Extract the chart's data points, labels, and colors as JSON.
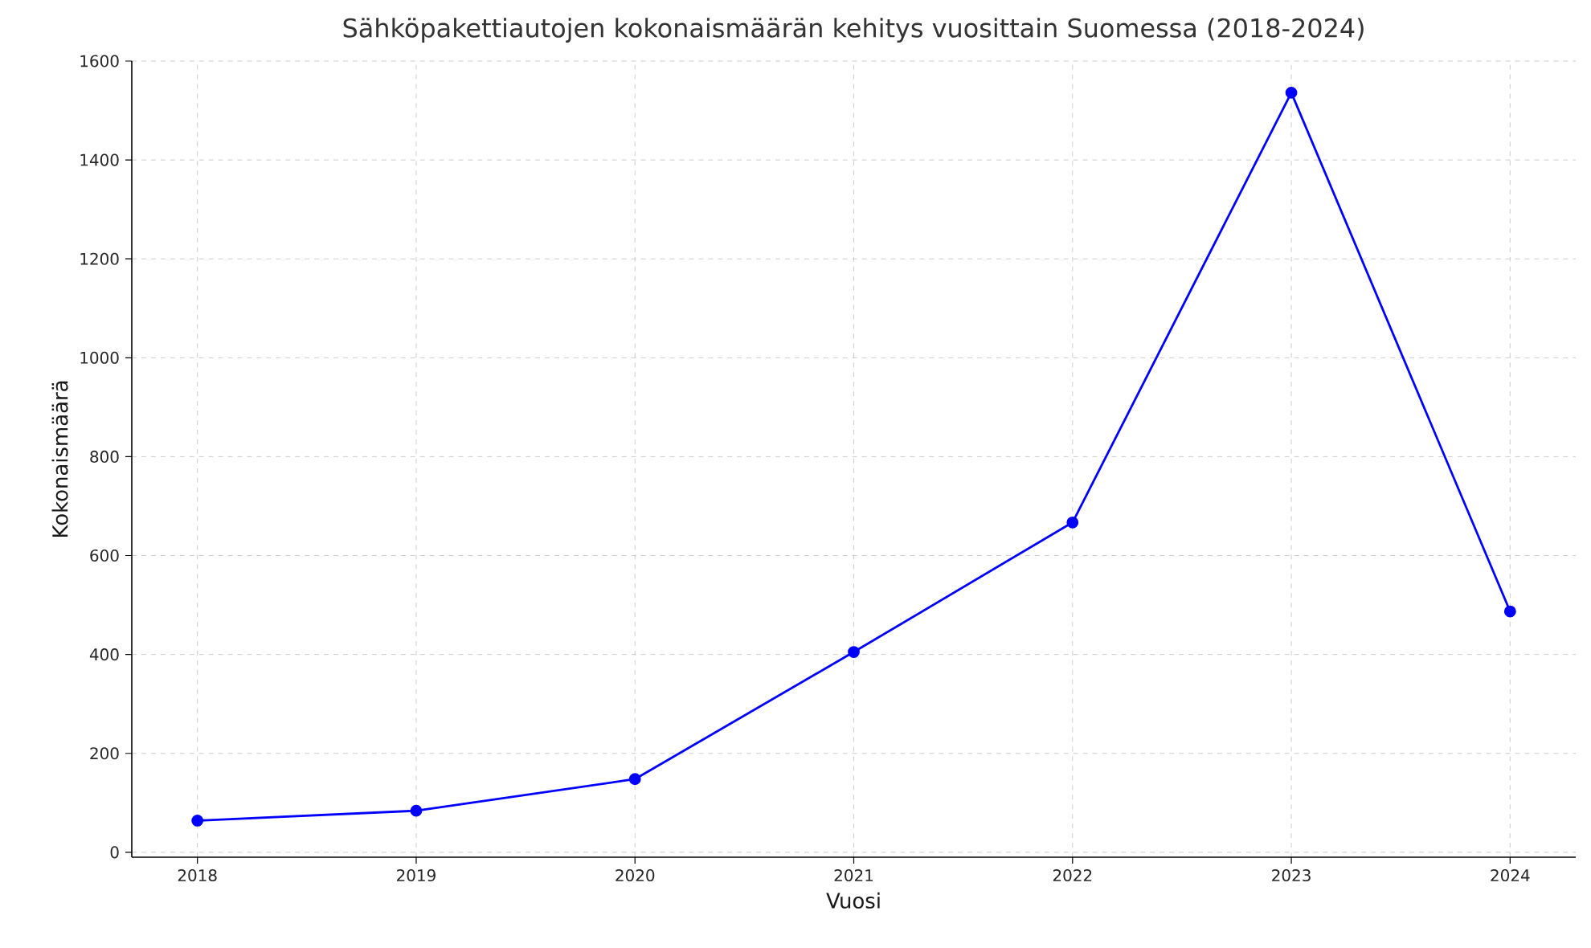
{
  "chart_data": {
    "type": "line",
    "title": "Sähköpakettiautojen kokonaismäärän kehitys vuosittain Suomessa (2018-2024)",
    "xlabel": "Vuosi",
    "ylabel": "Kokonaismäärä",
    "x": [
      2018,
      2019,
      2020,
      2021,
      2022,
      2023,
      2024
    ],
    "series": [
      {
        "color": "#0000ff",
        "values": [
          64,
          84,
          148,
          405,
          667,
          1536,
          487
        ]
      }
    ],
    "xlim": [
      2017.7,
      2024.3
    ],
    "ylim": [
      -10,
      1600
    ],
    "xticks": [
      2018,
      2019,
      2020,
      2021,
      2022,
      2023,
      2024
    ],
    "yticks": [
      0,
      200,
      400,
      600,
      800,
      1000,
      1200,
      1400,
      1600
    ],
    "grid": true,
    "marker": "circle",
    "line_style": "solid"
  }
}
